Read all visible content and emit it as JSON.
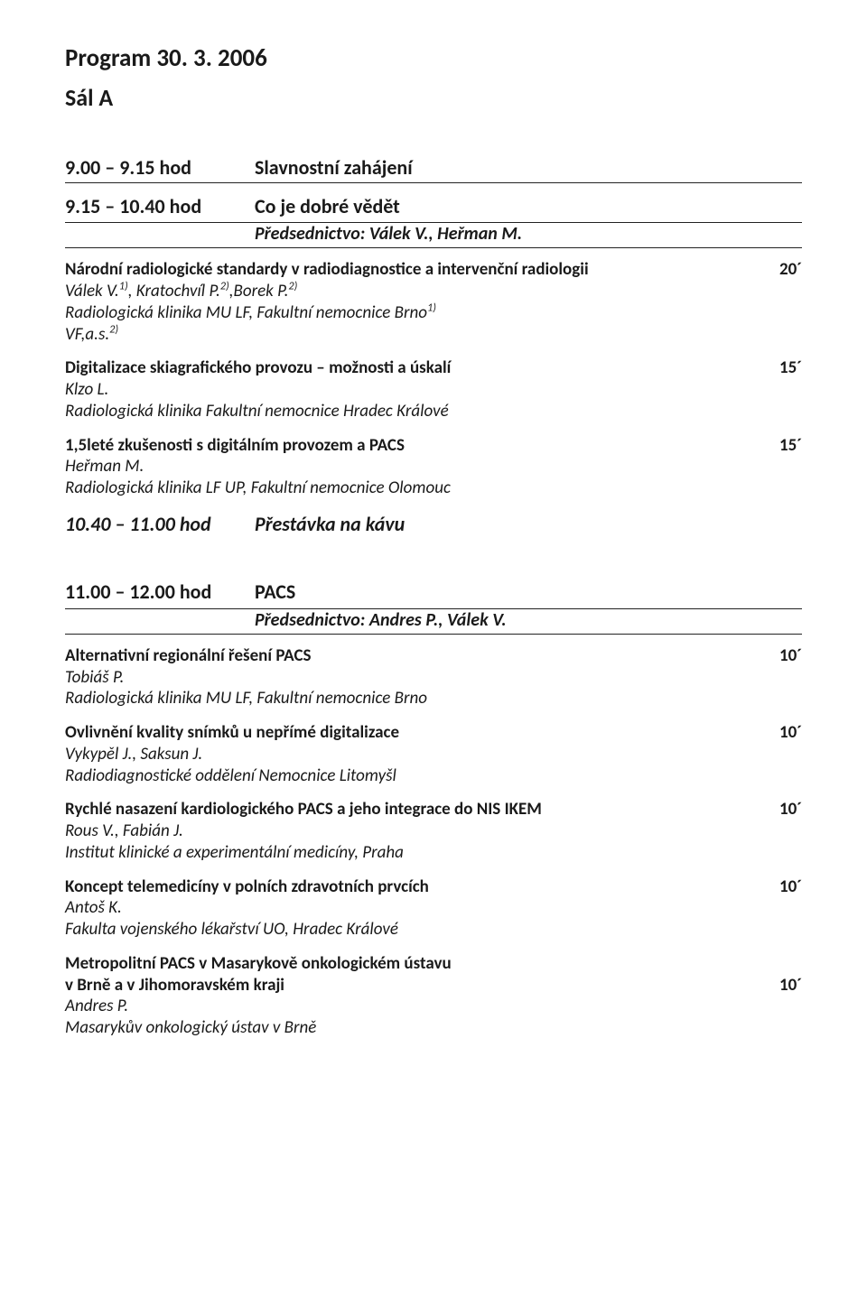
{
  "colors": {
    "text": "#1a1a1a",
    "rule": "#222222",
    "bg": "#ffffff"
  },
  "page_title": "Program 30. 3. 2006",
  "hall": "Sál A",
  "session1": {
    "time": "9.00 – 9.15 hod",
    "title": "Slavnostní zahájení"
  },
  "session2": {
    "time": "9.15 – 10.40 hod",
    "title": "Co je dobré vědět",
    "chair": "Předsednictvo: Válek V., Heřman M."
  },
  "talks_a": [
    {
      "title": "Národní radiologické standardy v radiodiagnostice a intervenční radiologii",
      "dur": "20´",
      "lines": [
        {
          "html": "Válek V.<sup>1)</sup>, Kratochvíl P.<sup>2)</sup>,Borek P.<sup>2)</sup>",
          "italic": true
        },
        {
          "html": "Radiologická klinika MU LF, Fakultní nemocnice Brno<sup>1)</sup>",
          "italic": true
        },
        {
          "html": "VF,a.s.<sup>2)</sup>",
          "italic": true
        }
      ]
    },
    {
      "title": "Digitalizace skiagrafického provozu – možnosti a úskalí",
      "dur": "15´",
      "lines": [
        {
          "html": "Klzo L.",
          "italic": true
        },
        {
          "html": "Radiologická klinika Fakultní nemocnice Hradec Králové",
          "italic": true
        }
      ]
    },
    {
      "title": "1,5leté zkušenosti s digitálním provozem a PACS",
      "dur": "15´",
      "lines": [
        {
          "html": "Heřman M.",
          "italic": true
        },
        {
          "html": "Radiologická klinika LF UP, Fakultní nemocnice Olomouc",
          "italic": true
        }
      ]
    }
  ],
  "break1": {
    "time": "10.40 – 11.00 hod",
    "label": "Přestávka na kávu"
  },
  "session3": {
    "time": "11.00 – 12.00 hod",
    "title": "PACS",
    "chair": "Předsednictvo: Andres P., Válek V."
  },
  "talks_b": [
    {
      "title": "Alternativní regionální řešení PACS",
      "dur": "10´",
      "lines": [
        {
          "html": "Tobiáš P.",
          "italic": true
        },
        {
          "html": "Radiologická klinika MU LF, Fakultní nemocnice Brno",
          "italic": true
        }
      ]
    },
    {
      "title": "Ovlivnění kvality snímků u nepřímé digitalizace",
      "dur": "10´",
      "lines": [
        {
          "html": "Vykypěl J., Saksun J.",
          "italic": true
        },
        {
          "html": "Radiodiagnostické oddělení Nemocnice Litomyšl",
          "italic": true
        }
      ]
    },
    {
      "title": "Rychlé nasazení kardiologického PACS a jeho integrace do NIS IKEM",
      "dur": "10´",
      "lines": [
        {
          "html": "Rous V., Fabián J.",
          "italic": true
        },
        {
          "html": "Institut klinické a experimentální medicíny, Praha",
          "italic": true
        }
      ]
    },
    {
      "title": "Koncept telemedicíny v polních zdravotních prvcích",
      "dur": "10´",
      "lines": [
        {
          "html": "Antoš K.",
          "italic": true
        },
        {
          "html": "Fakulta vojenského lékařství UO, Hradec Králové",
          "italic": true
        }
      ]
    },
    {
      "title_lines": [
        {
          "text": "Metropolitní PACS v Masarykově onkologickém ústavu",
          "dur": ""
        },
        {
          "text": "v Brně a v Jihomoravském kraji",
          "dur": "10´"
        }
      ],
      "lines": [
        {
          "html": "Andres P.",
          "italic": true
        },
        {
          "html": "Masarykův onkologický ústav v Brně",
          "italic": true
        }
      ]
    }
  ]
}
